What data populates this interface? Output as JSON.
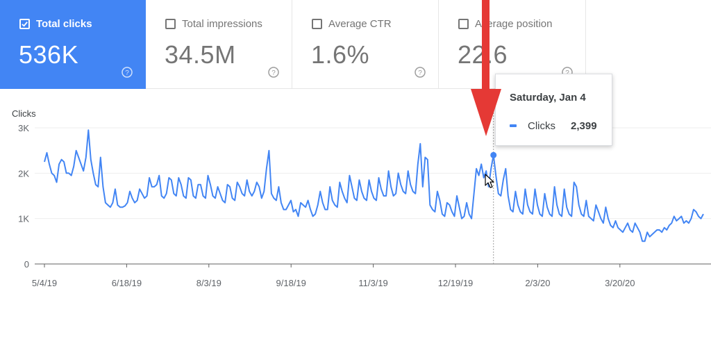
{
  "metrics": [
    {
      "label": "Total clicks",
      "value": "536K",
      "checked": true
    },
    {
      "label": "Total impressions",
      "value": "34.5M",
      "checked": false
    },
    {
      "label": "Average CTR",
      "value": "1.6%",
      "checked": false
    },
    {
      "label": "Average position",
      "value": "22.6",
      "checked": false
    }
  ],
  "icons": {
    "checkbox": "checkbox-icon",
    "help": "help-circle-icon",
    "arrow": "red-arrow-annotation",
    "cursor": "mouse-cursor-icon"
  },
  "colors": {
    "accent": "#4285f4",
    "arrow": "#e53935",
    "active_card": "#4285f4"
  },
  "tooltip": {
    "date": "Saturday, Jan 4",
    "series": "Clicks",
    "value": "2,399"
  },
  "chart_data": {
    "type": "line",
    "title": "",
    "ylabel": "Clicks",
    "xlabel": "",
    "ylim": [
      0,
      3000
    ],
    "yticks": [
      0,
      1000,
      2000,
      3000
    ],
    "ytick_labels": [
      "0",
      "1K",
      "2K",
      "3K"
    ],
    "xtick_labels": [
      "5/4/19",
      "6/18/19",
      "8/3/19",
      "9/18/19",
      "11/3/19",
      "12/19/19",
      "2/3/20",
      "3/20/20"
    ],
    "grid": true,
    "highlight": {
      "date": "Jan 4",
      "value": 2399
    },
    "series": [
      {
        "name": "Clicks",
        "start": "5/4/19",
        "values": [
          2250,
          2450,
          2200,
          2000,
          1950,
          1800,
          2200,
          2300,
          2250,
          2000,
          2000,
          1950,
          2150,
          2500,
          2350,
          2200,
          2050,
          2350,
          2950,
          2300,
          2000,
          1750,
          1700,
          2350,
          1700,
          1350,
          1300,
          1250,
          1350,
          1650,
          1300,
          1250,
          1250,
          1280,
          1350,
          1600,
          1450,
          1350,
          1400,
          1650,
          1550,
          1450,
          1500,
          1900,
          1700,
          1700,
          1750,
          1950,
          1500,
          1450,
          1550,
          1900,
          1850,
          1550,
          1500,
          1900,
          1750,
          1500,
          1450,
          1900,
          1850,
          1500,
          1450,
          1750,
          1750,
          1500,
          1450,
          1950,
          1750,
          1500,
          1450,
          1700,
          1550,
          1400,
          1350,
          1750,
          1700,
          1450,
          1400,
          1800,
          1700,
          1550,
          1500,
          1850,
          1600,
          1500,
          1600,
          1800,
          1700,
          1450,
          1600,
          2100,
          2500,
          1550,
          1450,
          1400,
          1700,
          1350,
          1200,
          1200,
          1300,
          1400,
          1150,
          1200,
          1050,
          1350,
          1300,
          1250,
          1400,
          1200,
          1050,
          1100,
          1300,
          1600,
          1350,
          1200,
          1200,
          1700,
          1400,
          1300,
          1250,
          1800,
          1600,
          1450,
          1350,
          1950,
          1700,
          1450,
          1400,
          1850,
          1600,
          1450,
          1400,
          1850,
          1600,
          1450,
          1400,
          1900,
          1650,
          1500,
          1500,
          2050,
          1700,
          1500,
          1550,
          2000,
          1750,
          1600,
          1550,
          2050,
          1750,
          1600,
          1550,
          2200,
          2650,
          1700,
          2350,
          2300,
          1300,
          1200,
          1150,
          1600,
          1400,
          1100,
          1050,
          1350,
          1300,
          1150,
          1050,
          1500,
          1250,
          1000,
          1050,
          1350,
          1100,
          1000,
          1550,
          2100,
          1950,
          2200,
          1900,
          2050,
          1700,
          2100,
          2399,
          1950,
          1550,
          1500,
          1850,
          2100,
          1500,
          1200,
          1150,
          1600,
          1300,
          1150,
          1100,
          1650,
          1300,
          1150,
          1100,
          1650,
          1300,
          1100,
          1050,
          1550,
          1250,
          1100,
          1050,
          1700,
          1300,
          1100,
          1050,
          1650,
          1250,
          1100,
          1050,
          1800,
          1700,
          1300,
          1100,
          1050,
          1400,
          1050,
          1000,
          950,
          1300,
          1150,
          1000,
          900,
          1250,
          1000,
          850,
          800,
          950,
          800,
          750,
          700,
          800,
          900,
          750,
          700,
          900,
          800,
          700,
          500,
          500,
          700,
          600,
          650,
          700,
          750,
          750,
          700,
          800,
          750,
          850,
          900,
          1050,
          950,
          1000,
          1050,
          900,
          950,
          900,
          1000,
          1200,
          1150,
          1050,
          1000,
          1100
        ]
      }
    ]
  }
}
